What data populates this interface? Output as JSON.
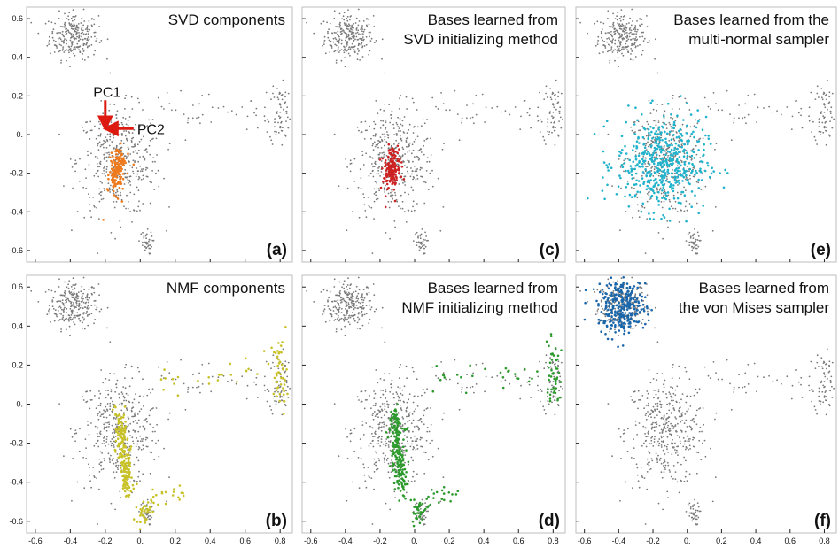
{
  "chart_data": [
    {
      "panel": "a",
      "type": "scatter",
      "title_lines": [
        "SVD components"
      ],
      "letter": "(a)",
      "highlight_color": "#ee7a1e",
      "highlight_style": "svd",
      "annotations": [
        {
          "text": "PC1",
          "color": "#dd1a10"
        },
        {
          "text": "PC2",
          "color": "#dd1a10"
        }
      ],
      "xlim": [
        -0.65,
        0.87
      ],
      "ylim": [
        -0.66,
        0.66
      ],
      "yticks": [
        "0.6",
        "0.4",
        "0.2",
        "0.",
        "-0.2",
        "-0.4",
        "-0.6"
      ],
      "xticks": []
    },
    {
      "panel": "c",
      "type": "scatter",
      "title_lines": [
        "Bases learned from",
        "SVD initializing method"
      ],
      "letter": "(c)",
      "highlight_color": "#cc2222",
      "highlight_style": "svd",
      "xlim": [
        -0.65,
        0.87
      ],
      "ylim": [
        -0.66,
        0.66
      ],
      "yticks": [],
      "xticks": []
    },
    {
      "panel": "e",
      "type": "scatter",
      "title_lines": [
        "Bases learned from the",
        "multi-normal sampler"
      ],
      "letter": "(e)",
      "highlight_color": "#22b3cc",
      "highlight_style": "normal",
      "xlim": [
        -0.65,
        0.87
      ],
      "ylim": [
        -0.66,
        0.66
      ],
      "yticks": [],
      "xticks": []
    },
    {
      "panel": "b",
      "type": "scatter",
      "title_lines": [
        "NMF components"
      ],
      "letter": "(b)",
      "highlight_color": "#c8c228",
      "highlight_style": "nmf",
      "xlim": [
        -0.65,
        0.87
      ],
      "ylim": [
        -0.66,
        0.66
      ],
      "yticks": [
        "0.6",
        "0.4",
        "0.2",
        "0.",
        "-0.2",
        "-0.4",
        "-0.6"
      ],
      "xticks": [
        "-0.6",
        "-0.4",
        "-0.2",
        "0.",
        "0.2",
        "0.4",
        "0.6",
        "0.8"
      ]
    },
    {
      "panel": "d",
      "type": "scatter",
      "title_lines": [
        "Bases learned from",
        "NMF initializing method"
      ],
      "letter": "(d)",
      "highlight_color": "#2e9a2e",
      "highlight_style": "nmf",
      "xlim": [
        -0.65,
        0.87
      ],
      "ylim": [
        -0.66,
        0.66
      ],
      "yticks": [],
      "xticks": [
        "-0.6",
        "-0.4",
        "-0.2",
        "0.",
        "0.2",
        "0.4",
        "0.6",
        "0.8"
      ]
    },
    {
      "panel": "f",
      "type": "scatter",
      "title_lines": [
        "Bases learned from",
        "the von Mises sampler"
      ],
      "letter": "(f)",
      "highlight_color": "#1a66aa",
      "highlight_style": "vonmises",
      "xlim": [
        -0.65,
        0.87
      ],
      "ylim": [
        -0.66,
        0.66
      ],
      "yticks": [],
      "xticks": [
        "-0.6",
        "-0.4",
        "-0.2",
        "0.",
        "0.2",
        "0.4",
        "0.6",
        "0.8"
      ]
    }
  ],
  "background_points_color": "#7a7a7a",
  "background_clusters": [
    {
      "name": "upper-left blob",
      "center": [
        -0.38,
        0.51
      ],
      "spread": [
        0.07,
        0.06
      ],
      "count": 260
    },
    {
      "name": "central column",
      "center": [
        -0.12,
        -0.14
      ],
      "spread": [
        0.12,
        0.14
      ],
      "count": 420
    },
    {
      "name": "right cluster",
      "center": [
        0.8,
        0.12
      ],
      "spread": [
        0.03,
        0.09
      ],
      "count": 70
    },
    {
      "name": "bottom cluster",
      "center": [
        0.03,
        -0.56
      ],
      "spread": [
        0.02,
        0.03
      ],
      "count": 40
    }
  ]
}
